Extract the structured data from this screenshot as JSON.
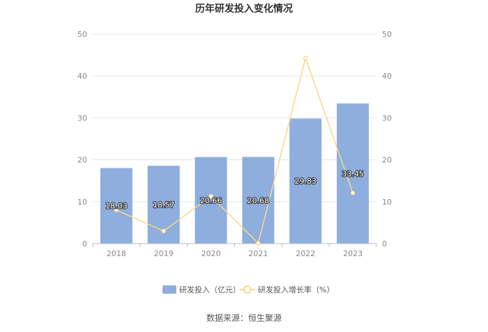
{
  "chart_data": {
    "type": "bar",
    "title": "历年研发投入变化情况",
    "categories": [
      "2018",
      "2019",
      "2020",
      "2021",
      "2022",
      "2023"
    ],
    "series": [
      {
        "name": "研发投入（亿元）",
        "type": "bar",
        "axis": "left",
        "values": [
          18.03,
          18.57,
          20.66,
          20.68,
          29.83,
          33.45
        ],
        "color": "#8eaedd"
      },
      {
        "name": "研发投入增长率（%）",
        "type": "line",
        "axis": "right",
        "values": [
          8.0,
          3.0,
          11.3,
          0.1,
          44.3,
          12.1
        ],
        "color": "#fbd78a"
      }
    ],
    "ylim_left": [
      0,
      50
    ],
    "ylim_right": [
      0,
      50
    ],
    "yticks_left": [
      "0",
      "10",
      "20",
      "30",
      "40",
      "50"
    ],
    "yticks_right": [
      "0",
      "10",
      "20",
      "30",
      "40",
      "50"
    ],
    "grid": true,
    "legend_position": "bottom"
  },
  "source_text": "数据来源：恒生聚源"
}
